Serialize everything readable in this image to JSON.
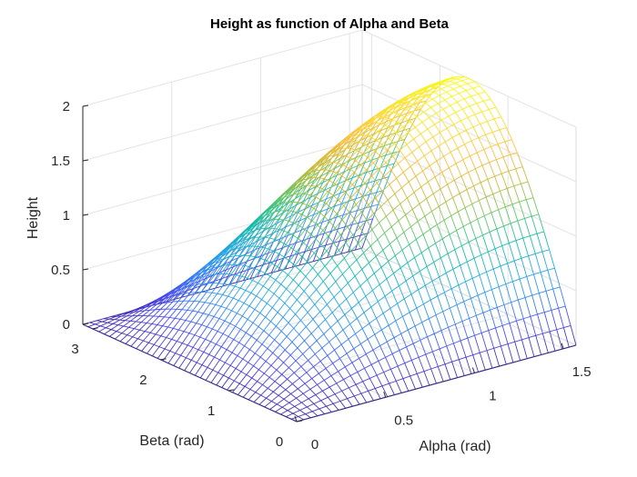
{
  "chart_data": {
    "type": "surface",
    "title": "Height as function of Alpha and Beta",
    "xlabel": "Alpha (rad)",
    "ylabel": "Beta (rad)",
    "zlabel": "Height",
    "xlim": [
      0,
      1.5708
    ],
    "ylim": [
      0,
      3.1416
    ],
    "zlim": [
      0,
      2
    ],
    "xticks": [
      "0",
      "0.5",
      "1",
      "1.5"
    ],
    "xtick_values": [
      0,
      0.5,
      1,
      1.5
    ],
    "yticks": [
      "0",
      "1",
      "2",
      "3"
    ],
    "ytick_values": [
      0,
      1,
      2,
      3
    ],
    "zticks": [
      "0",
      "0.5",
      "1",
      "1.5",
      "2"
    ],
    "ztick_values": [
      0,
      0.5,
      1,
      1.5,
      2
    ],
    "grid": true,
    "colormap": "parula",
    "colormap_colors": [
      "#3E26A8",
      "#4745F4",
      "#2E87F7",
      "#1EA9DF",
      "#0DBBA5",
      "#5FC560",
      "#C2B932",
      "#FCBD3D",
      "#FADF2A",
      "#F9FB0E"
    ],
    "surface_samples": {
      "x": [
        0,
        0.3927,
        0.7854,
        1.1781,
        1.5708
      ],
      "y": [
        0,
        0.7854,
        1.5708,
        2.3562,
        3.1416
      ],
      "z": [
        [
          0,
          0,
          0,
          0,
          0
        ],
        [
          0,
          0.541,
          0.765,
          0.541,
          0
        ],
        [
          0,
          0.924,
          1.307,
          0.924,
          0
        ],
        [
          0,
          1.307,
          1.848,
          1.307,
          0
        ],
        [
          0,
          1.414,
          2.0,
          1.414,
          0
        ]
      ]
    }
  }
}
